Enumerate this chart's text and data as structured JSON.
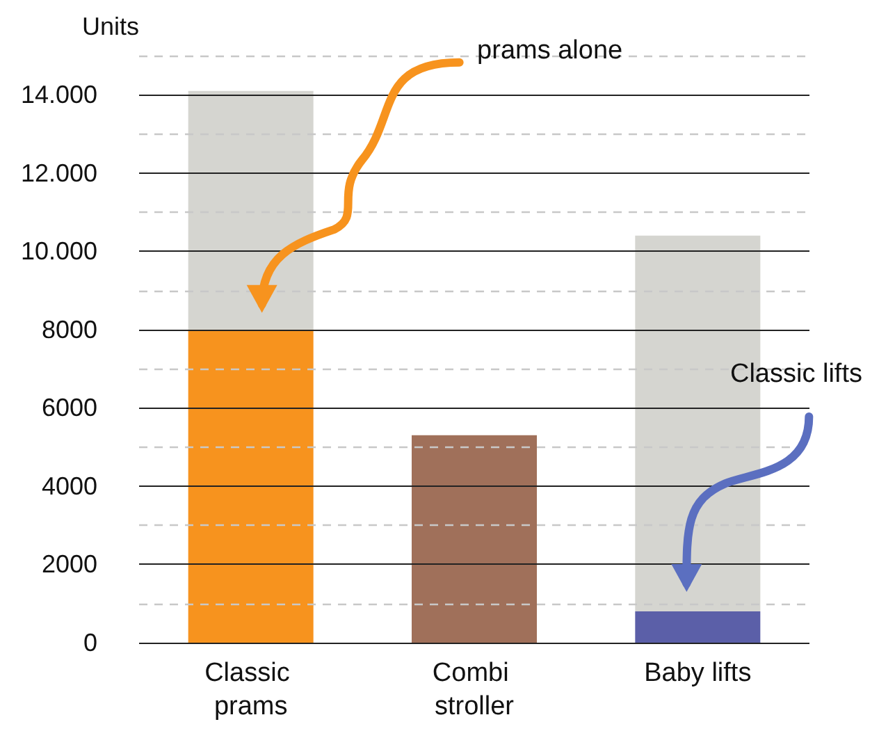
{
  "chart_data": {
    "type": "bar",
    "stacked": true,
    "ylabel": "Units",
    "categories": [
      "Classic prams",
      "Combi stroller",
      "Baby lifts"
    ],
    "series": [
      {
        "values": [
          8000,
          5300,
          800
        ],
        "colors": [
          "#f7931e",
          "#a0705a",
          "#5b5fa8"
        ]
      },
      {
        "values": [
          6100,
          null,
          9600
        ],
        "color": "#d5d5d0"
      }
    ],
    "ylim": [
      0,
      15000
    ],
    "yticks": [
      0,
      {
        "value": 1000,
        "label": null
      },
      2000,
      {
        "value": 3000,
        "label": null
      },
      4000,
      {
        "value": 5000,
        "label": null
      },
      6000,
      {
        "value": 7000,
        "label": null
      },
      8000,
      {
        "value": 9000,
        "label": null
      },
      {
        "value": 10000,
        "label": "10.000"
      },
      {
        "value": 11000,
        "label": null
      },
      {
        "value": 12000,
        "label": "12.000"
      },
      {
        "value": 13000,
        "label": null
      },
      {
        "value": 14000,
        "label": "14.000"
      },
      {
        "value": 15000,
        "label": null
      }
    ],
    "grid": "y",
    "annotations": [
      "prams alone",
      "Classic lifts"
    ]
  }
}
